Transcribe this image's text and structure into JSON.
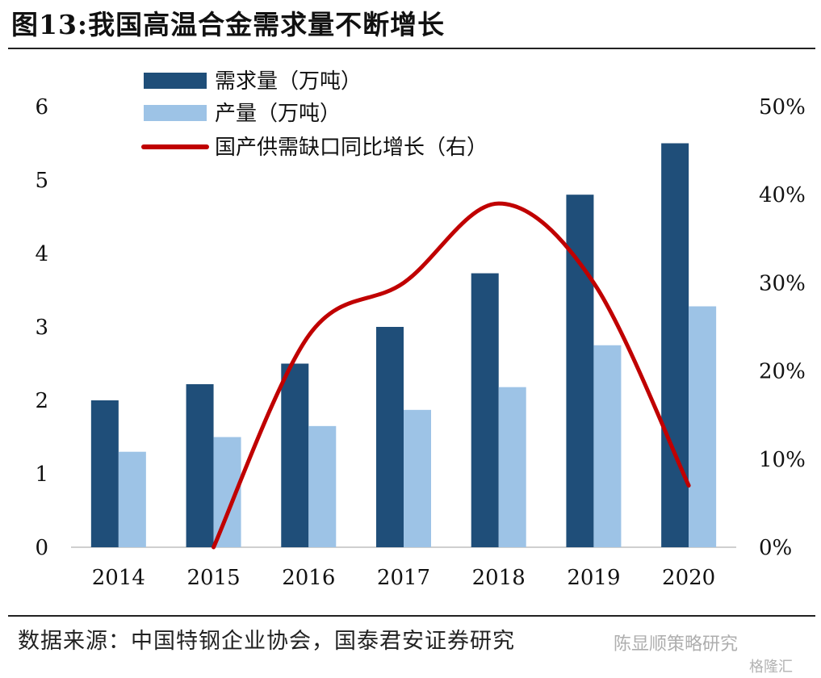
{
  "figure": {
    "title": "图13:我国高温合金需求量不断增长",
    "source": "数据来源：中国特钢企业协会，国泰君安证券研究",
    "watermark": "陈显顺策略研究",
    "watermark_brand": "格隆汇"
  },
  "chart_data": {
    "type": "bar",
    "categories": [
      "2014",
      "2015",
      "2016",
      "2017",
      "2018",
      "2019",
      "2020"
    ],
    "series": [
      {
        "name": "需求量（万吨）",
        "type": "bar",
        "axis": "left",
        "color": "#1f4e79",
        "values": [
          2.0,
          2.22,
          2.5,
          3.0,
          3.73,
          4.8,
          5.5
        ]
      },
      {
        "name": "产量（万吨）",
        "type": "bar",
        "axis": "left",
        "color": "#9dc3e6",
        "values": [
          1.3,
          1.5,
          1.65,
          1.87,
          2.18,
          2.75,
          3.28
        ]
      },
      {
        "name": "国产供需缺口同比增长（右）",
        "type": "line",
        "axis": "right",
        "color": "#c00000",
        "x": [
          "2015",
          "2016",
          "2017",
          "2018",
          "2019",
          "2020"
        ],
        "values": [
          0,
          24,
          30,
          39,
          30,
          7
        ]
      }
    ],
    "ylim_left": [
      0,
      6
    ],
    "ylim_right": [
      0,
      50
    ],
    "yticks_left": [
      "0",
      "1",
      "2",
      "3",
      "4",
      "5",
      "6"
    ],
    "yticks_right": [
      "0%",
      "10%",
      "20%",
      "30%",
      "40%",
      "50%"
    ],
    "legend": "top-left",
    "grid": false
  }
}
